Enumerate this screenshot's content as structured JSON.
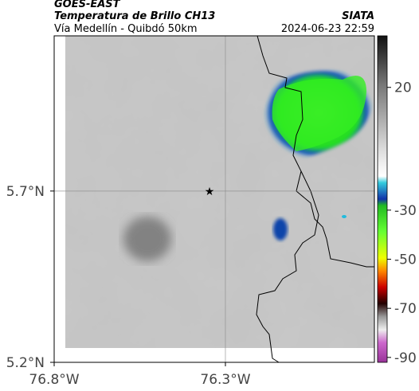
{
  "header": {
    "source": "GOES-EAST",
    "title": "Temperatura de Brillo CH13",
    "subtitle": "Vía Medellín - Quibdó 50km",
    "agency": "SIATA",
    "timestamp": "2024-06-23 22:59"
  },
  "map": {
    "xlim": [
      -76.8,
      -75.865
    ],
    "ylim": [
      5.2,
      6.153
    ],
    "xticks": [
      {
        "value": -76.8,
        "label": "76.8°W"
      },
      {
        "value": -76.3,
        "label": "76.3°W"
      }
    ],
    "yticks": [
      {
        "value": 5.2,
        "label": "5.2°N"
      },
      {
        "value": 5.7,
        "label": "5.7°N"
      }
    ],
    "grid": true
  },
  "colorbar": {
    "clim": [
      -92,
      41
    ],
    "ticks": [
      20,
      -30,
      -50,
      -70,
      -90
    ]
  }
}
